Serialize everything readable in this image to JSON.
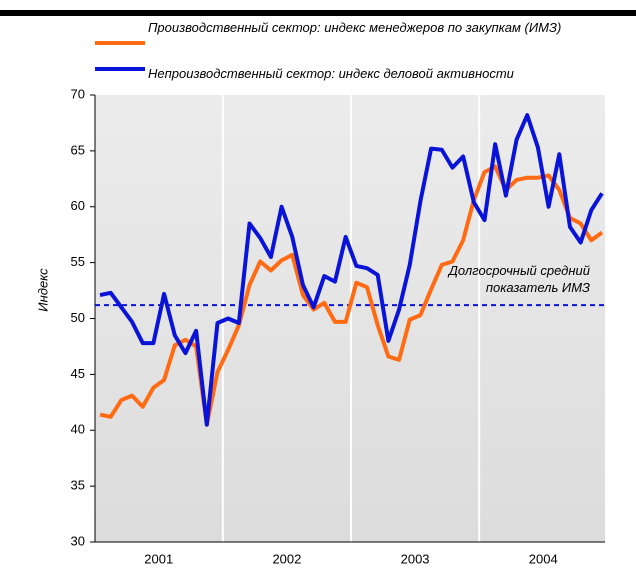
{
  "chart_data": {
    "type": "line",
    "ylabel": "Индекс",
    "categories": [
      null,
      null,
      null,
      null,
      null,
      "2001",
      null,
      null,
      null,
      null,
      null,
      null,
      null,
      null,
      null,
      null,
      null,
      "2002",
      null,
      null,
      null,
      null,
      null,
      null,
      null,
      null,
      null,
      null,
      null,
      "2003",
      null,
      null,
      null,
      null,
      null,
      null,
      null,
      null,
      null,
      null,
      null,
      "2004",
      null,
      null,
      null,
      null,
      null,
      null
    ],
    "series": [
      {
        "name": "Производственный сектор: индекс менеджеров по закупкам (ИМЗ)",
        "color": "#ff6a13",
        "values": [
          41.4,
          41.2,
          42.7,
          43.1,
          42.1,
          43.8,
          44.5,
          47.6,
          48.1,
          47.5,
          40.5,
          45.2,
          47.2,
          49.4,
          53.0,
          55.1,
          54.3,
          55.2,
          55.7,
          52.1,
          50.8,
          51.4,
          49.7,
          49.7,
          53.2,
          52.8,
          49.4,
          46.6,
          46.3,
          49.9,
          50.3,
          52.6,
          54.8,
          55.1,
          57.0,
          60.6,
          63.1,
          63.6,
          61.5,
          62.4,
          62.6,
          62.6,
          62.8,
          61.5,
          59.0,
          58.5,
          57.0,
          57.7
        ]
      },
      {
        "name": "Непроизводственный сектор: индекс деловой активности",
        "color": "#0a14d8",
        "values": [
          52.1,
          52.3,
          51.0,
          49.7,
          47.8,
          47.8,
          52.2,
          48.5,
          46.9,
          48.9,
          40.5,
          49.6,
          50.0,
          49.6,
          58.5,
          57.2,
          55.5,
          60.0,
          57.3,
          53.0,
          51.0,
          53.8,
          53.3,
          57.3,
          54.7,
          54.5,
          53.9,
          48.0,
          50.8,
          54.8,
          60.5,
          65.2,
          65.1,
          63.5,
          64.5,
          60.4,
          58.8,
          65.6,
          61.0,
          66.0,
          68.2,
          65.3,
          60.0,
          64.7,
          58.2,
          56.8,
          59.7,
          61.2
        ]
      }
    ],
    "reference_line": {
      "value": 51.2,
      "color": "#0a14d8",
      "label": "Долгосрочный средний показатель ИМЗ"
    },
    "ylim": [
      30,
      70
    ],
    "yticks": [
      30,
      35,
      40,
      45,
      50,
      55,
      60,
      65,
      70
    ]
  }
}
